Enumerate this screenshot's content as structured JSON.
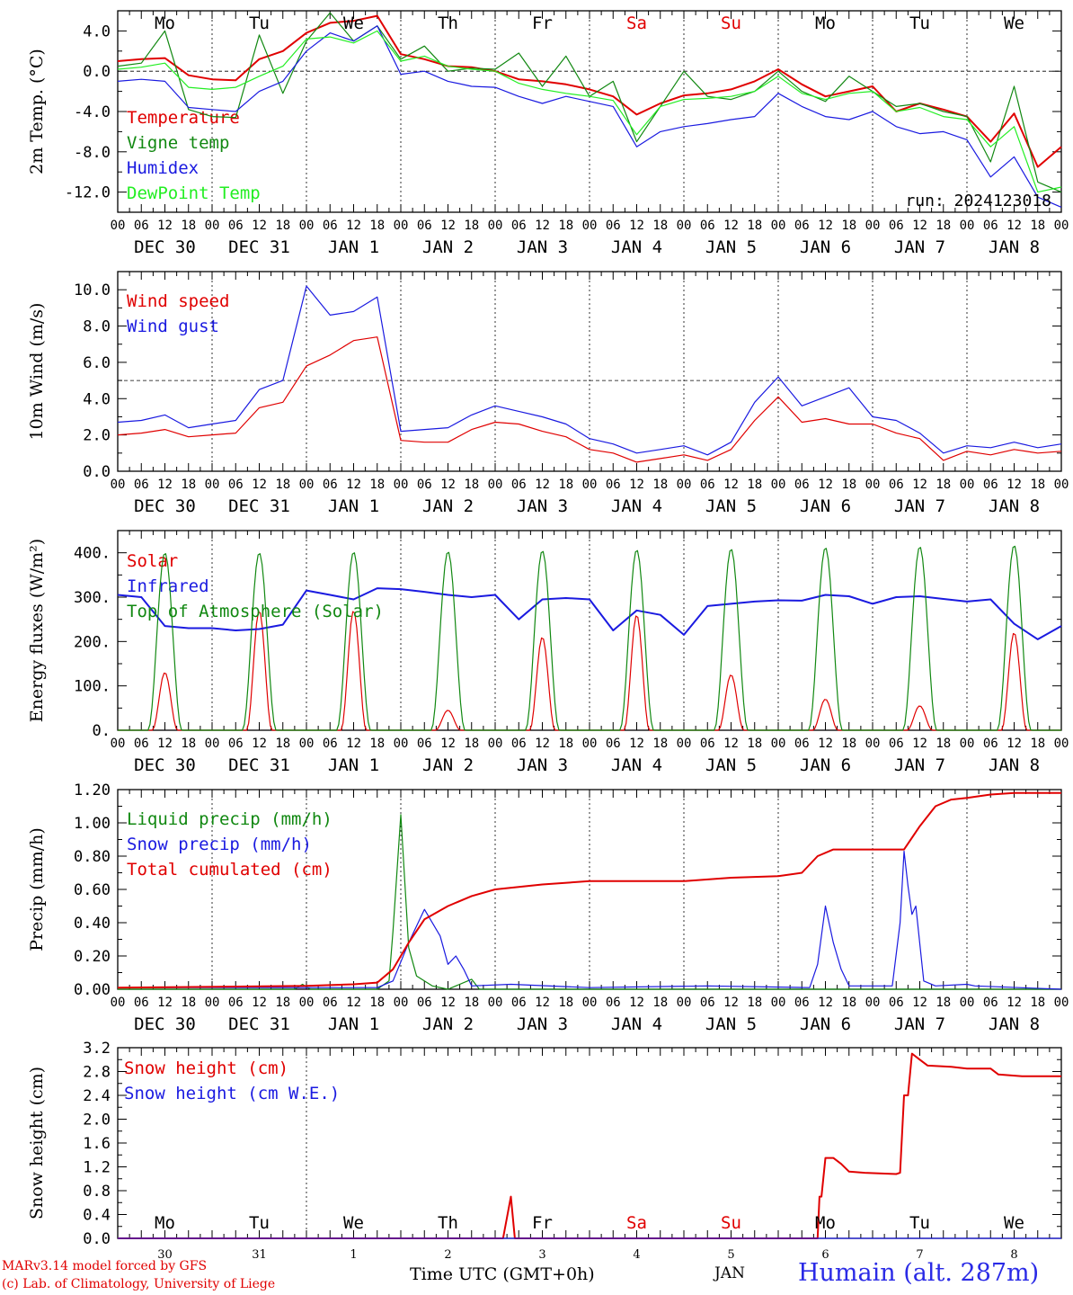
{
  "chart_data": [
    {
      "type": "line",
      "ylabel": "2m Temp. (°C)",
      "ylim": [
        -14,
        6
      ],
      "yticks": [
        4,
        0,
        -4,
        -8,
        -12
      ],
      "ytick_labels": [
        "4.0",
        "0.0",
        "-4.0",
        "-8.0",
        "-12.0"
      ],
      "ref_line": 0,
      "annotation": "run: 2024123018",
      "x_hours": [
        0,
        6,
        12,
        18,
        24,
        30,
        36,
        42,
        48,
        54,
        60,
        66,
        72,
        78,
        84,
        90,
        96,
        102,
        108,
        114,
        120,
        126,
        132,
        138,
        144,
        150,
        156,
        162,
        168,
        174,
        180,
        186,
        192,
        198,
        204,
        210,
        216,
        222,
        228,
        234,
        240
      ],
      "series": [
        {
          "name": "Temperature",
          "color": "#e00000",
          "values": [
            1.0,
            1.2,
            1.3,
            -0.4,
            -0.8,
            -0.9,
            1.2,
            2.0,
            3.8,
            4.8,
            5.0,
            5.5,
            1.7,
            1.2,
            0.5,
            0.4,
            0.0,
            -0.8,
            -1.0,
            -1.3,
            -1.8,
            -2.5,
            -4.3,
            -3.2,
            -2.4,
            -2.2,
            -1.8,
            -1.0,
            0.2,
            -1.3,
            -2.5,
            -2.0,
            -1.5,
            -4.0,
            -3.2,
            -3.8,
            -4.5,
            -7.0,
            -4.2,
            -9.5,
            -7.5
          ]
        },
        {
          "name": "Vigne temp",
          "color": "#118811",
          "values": [
            0.5,
            0.8,
            4.0,
            -3.8,
            -4.5,
            -4.6,
            3.6,
            -2.2,
            3.0,
            5.8,
            3.0,
            4.5,
            1.2,
            2.5,
            0.0,
            0.3,
            0.2,
            1.8,
            -1.5,
            1.5,
            -2.5,
            -1.0,
            -7.0,
            -3.5,
            0.0,
            -2.5,
            -2.8,
            -2.0,
            0.0,
            -2.0,
            -3.0,
            -0.5,
            -2.0,
            -3.5,
            -3.2,
            -4.0,
            -4.5,
            -9.0,
            -1.5,
            -11.0,
            -12.0
          ]
        },
        {
          "name": "Humidex",
          "color": "#1a1ae0",
          "values": [
            -1.0,
            -0.8,
            -1.0,
            -3.6,
            -3.8,
            -4.0,
            -2.0,
            -1.0,
            2.0,
            3.8,
            3.0,
            4.5,
            -0.3,
            0.0,
            -1.0,
            -1.5,
            -1.6,
            -2.5,
            -3.2,
            -2.5,
            -3.0,
            -3.5,
            -7.5,
            -6.0,
            -5.5,
            -5.2,
            -4.8,
            -4.5,
            -2.2,
            -3.5,
            -4.5,
            -4.8,
            -4.0,
            -5.5,
            -6.2,
            -6.0,
            -6.8,
            -10.5,
            -8.5,
            -12.5,
            -13.5
          ]
        },
        {
          "name": "DewPoint Temp",
          "color": "#22ee22",
          "values": [
            0.2,
            0.4,
            0.8,
            -1.6,
            -1.8,
            -1.6,
            -0.5,
            0.5,
            3.2,
            3.4,
            2.8,
            4.0,
            1.0,
            1.5,
            0.5,
            0.2,
            0.0,
            -1.2,
            -1.8,
            -2.2,
            -2.5,
            -2.9,
            -6.3,
            -3.5,
            -2.8,
            -2.7,
            -2.5,
            -2.0,
            -0.5,
            -2.2,
            -2.8,
            -2.2,
            -2.0,
            -4.0,
            -3.6,
            -4.5,
            -4.8,
            -7.5,
            -5.5,
            -12.0,
            -11.5
          ]
        }
      ]
    },
    {
      "type": "line",
      "ylabel": "10m Wind (m/s)",
      "ylim": [
        0,
        11
      ],
      "yticks": [
        0,
        2,
        4,
        6,
        8,
        10
      ],
      "ytick_labels": [
        "0.0",
        "2.0",
        "4.0",
        "6.0",
        "8.0",
        "10.0"
      ],
      "ref_line": 5,
      "x_hours": [
        0,
        6,
        12,
        18,
        24,
        30,
        36,
        42,
        48,
        54,
        60,
        66,
        72,
        78,
        84,
        90,
        96,
        102,
        108,
        114,
        120,
        126,
        132,
        138,
        144,
        150,
        156,
        162,
        168,
        174,
        180,
        186,
        192,
        198,
        204,
        210,
        216,
        222,
        228,
        234,
        240
      ],
      "series": [
        {
          "name": "Wind speed",
          "color": "#e00000",
          "values": [
            2.0,
            2.1,
            2.3,
            1.9,
            2.0,
            2.1,
            3.5,
            3.8,
            5.8,
            6.4,
            7.2,
            7.4,
            1.7,
            1.6,
            1.6,
            2.3,
            2.7,
            2.6,
            2.2,
            1.9,
            1.2,
            1.0,
            0.5,
            0.7,
            0.9,
            0.6,
            1.2,
            2.8,
            4.1,
            2.7,
            2.9,
            2.6,
            2.6,
            2.1,
            1.8,
            0.6,
            1.1,
            0.9,
            1.2,
            1.0,
            1.1
          ]
        },
        {
          "name": "Wind gust",
          "color": "#1a1ae0",
          "values": [
            2.7,
            2.8,
            3.1,
            2.4,
            2.6,
            2.8,
            4.5,
            5.0,
            10.2,
            8.6,
            8.8,
            9.6,
            2.2,
            2.3,
            2.4,
            3.1,
            3.6,
            3.3,
            3.0,
            2.6,
            1.8,
            1.5,
            1.0,
            1.2,
            1.4,
            0.9,
            1.6,
            3.8,
            5.2,
            3.6,
            4.1,
            4.6,
            3.0,
            2.8,
            2.1,
            1.0,
            1.4,
            1.3,
            1.6,
            1.3,
            1.5
          ]
        }
      ]
    },
    {
      "type": "line",
      "ylabel": "Energy fluxes (W/m²)",
      "ylim": [
        0,
        450
      ],
      "yticks": [
        0,
        100,
        200,
        300,
        400
      ],
      "ytick_labels": [
        "0.",
        "100.",
        "200.",
        "300.",
        "400."
      ],
      "series": [
        {
          "name": "Solar",
          "color": "#e00000",
          "daily_peaks_wm2": [
            130,
            270,
            270,
            45,
            210,
            260,
            125,
            70,
            55,
            220
          ]
        },
        {
          "name": "Infrared",
          "color": "#1a1ae0",
          "x_hours": [
            0,
            6,
            12,
            18,
            24,
            30,
            36,
            42,
            48,
            54,
            60,
            66,
            72,
            78,
            84,
            90,
            96,
            102,
            108,
            114,
            120,
            126,
            132,
            138,
            144,
            150,
            156,
            162,
            168,
            174,
            180,
            186,
            192,
            198,
            204,
            210,
            216,
            222,
            228,
            234,
            240
          ],
          "values": [
            305,
            300,
            235,
            230,
            230,
            225,
            228,
            238,
            315,
            305,
            295,
            320,
            318,
            312,
            305,
            300,
            305,
            250,
            295,
            298,
            295,
            225,
            270,
            260,
            215,
            280,
            285,
            290,
            293,
            292,
            305,
            302,
            285,
            300,
            302,
            296,
            290,
            295,
            240,
            205,
            235
          ]
        },
        {
          "name": "Top of Atmosphere (Solar)",
          "color": "#118811",
          "daily_peaks_wm2": [
            400,
            400,
            402,
            403,
            405,
            407,
            409,
            412,
            414,
            417
          ]
        }
      ]
    },
    {
      "type": "line",
      "ylabel": "Precip (mm/h)",
      "ylim": [
        0,
        1.2
      ],
      "yticks": [
        0,
        0.2,
        0.4,
        0.6,
        0.8,
        1.0,
        1.2
      ],
      "ytick_labels": [
        "0.00",
        "0.20",
        "0.40",
        "0.60",
        "0.80",
        "1.00",
        "1.20"
      ],
      "series": [
        {
          "name": "Liquid precip (mm/h)",
          "color": "#118811",
          "points": [
            [
              0,
              0
            ],
            [
              45,
              0
            ],
            [
              47,
              0.03
            ],
            [
              49,
              0
            ],
            [
              66,
              0
            ],
            [
              69,
              0.05
            ],
            [
              70,
              0.35
            ],
            [
              72,
              1.05
            ],
            [
              74,
              0.25
            ],
            [
              76,
              0.08
            ],
            [
              80,
              0.02
            ],
            [
              84,
              0
            ],
            [
              90,
              0.06
            ],
            [
              92,
              0
            ],
            [
              240,
              0
            ]
          ]
        },
        {
          "name": "Snow precip (mm/h)",
          "color": "#1a1ae0",
          "points": [
            [
              0,
              0.01
            ],
            [
              66,
              0.01
            ],
            [
              70,
              0.05
            ],
            [
              74,
              0.28
            ],
            [
              78,
              0.48
            ],
            [
              82,
              0.32
            ],
            [
              84,
              0.15
            ],
            [
              86,
              0.2
            ],
            [
              88,
              0.12
            ],
            [
              90,
              0.02
            ],
            [
              100,
              0.03
            ],
            [
              120,
              0.01
            ],
            [
              150,
              0.02
            ],
            [
              176,
              0.01
            ],
            [
              178,
              0.15
            ],
            [
              180,
              0.5
            ],
            [
              182,
              0.28
            ],
            [
              184,
              0.12
            ],
            [
              186,
              0.02
            ],
            [
              197,
              0.02
            ],
            [
              199,
              0.4
            ],
            [
              200,
              0.83
            ],
            [
              201,
              0.62
            ],
            [
              202,
              0.45
            ],
            [
              203,
              0.5
            ],
            [
              205,
              0.05
            ],
            [
              208,
              0.02
            ],
            [
              216,
              0.03
            ],
            [
              218,
              0.02
            ],
            [
              240,
              0
            ]
          ]
        },
        {
          "name": "Total cumulated (cm)",
          "color": "#e00000",
          "points": [
            [
              0,
              0.01
            ],
            [
              48,
              0.02
            ],
            [
              60,
              0.03
            ],
            [
              66,
              0.04
            ],
            [
              70,
              0.12
            ],
            [
              74,
              0.28
            ],
            [
              78,
              0.42
            ],
            [
              84,
              0.5
            ],
            [
              90,
              0.56
            ],
            [
              96,
              0.6
            ],
            [
              108,
              0.63
            ],
            [
              120,
              0.65
            ],
            [
              144,
              0.65
            ],
            [
              156,
              0.67
            ],
            [
              168,
              0.68
            ],
            [
              174,
              0.7
            ],
            [
              178,
              0.8
            ],
            [
              182,
              0.84
            ],
            [
              200,
              0.84
            ],
            [
              204,
              0.98
            ],
            [
              208,
              1.1
            ],
            [
              212,
              1.14
            ],
            [
              216,
              1.15
            ],
            [
              222,
              1.17
            ],
            [
              228,
              1.18
            ],
            [
              240,
              1.18
            ]
          ]
        }
      ]
    },
    {
      "type": "line",
      "ylabel": "Snow height (cm)",
      "ylim": [
        0,
        3.2
      ],
      "yticks": [
        0,
        0.4,
        0.8,
        1.2,
        1.6,
        2.0,
        2.4,
        2.8,
        3.2
      ],
      "ytick_labels": [
        "0.0",
        "0.4",
        "0.8",
        "1.2",
        "1.6",
        "2.0",
        "2.4",
        "2.8",
        "3.2"
      ],
      "series": [
        {
          "name": "Snow height (cm)",
          "color": "#e00000",
          "points": [
            [
              0,
              0
            ],
            [
              98,
              0
            ],
            [
              100,
              0.7
            ],
            [
              101,
              0
            ],
            [
              178,
              0
            ],
            [
              178.5,
              0.7
            ],
            [
              179,
              0.7
            ],
            [
              180,
              1.35
            ],
            [
              182,
              1.35
            ],
            [
              184,
              1.25
            ],
            [
              186,
              1.12
            ],
            [
              190,
              1.1
            ],
            [
              198,
              1.08
            ],
            [
              199,
              1.1
            ],
            [
              200,
              2.4
            ],
            [
              201,
              2.4
            ],
            [
              202,
              3.1
            ],
            [
              204,
              3.0
            ],
            [
              206,
              2.9
            ],
            [
              212,
              2.88
            ],
            [
              216,
              2.85
            ],
            [
              222,
              2.85
            ],
            [
              224,
              2.75
            ],
            [
              230,
              2.72
            ],
            [
              240,
              2.72
            ]
          ]
        },
        {
          "name": "Snow height (cm W.E.)",
          "color": "#1a1ae0",
          "points": [
            [
              0,
              0
            ],
            [
              240,
              0
            ]
          ]
        }
      ]
    }
  ],
  "x_axis": {
    "hour_ticks": [
      "00",
      "06",
      "12",
      "18"
    ],
    "hour_end_label": "00",
    "day_labels": [
      "DEC 30",
      "DEC 31",
      "JAN  1",
      "JAN  2",
      "JAN  3",
      "JAN  4",
      "JAN  5",
      "JAN  6",
      "JAN  7",
      "JAN  8"
    ],
    "weekday_labels": [
      {
        "text": "Mo",
        "color": "#000000"
      },
      {
        "text": "Tu",
        "color": "#000000"
      },
      {
        "text": "We",
        "color": "#000000"
      },
      {
        "text": "Th",
        "color": "#000000"
      },
      {
        "text": "Fr",
        "color": "#000000"
      },
      {
        "text": "Sa",
        "color": "#e00000"
      },
      {
        "text": "Su",
        "color": "#e00000"
      },
      {
        "text": "Mo",
        "color": "#000000"
      },
      {
        "text": "Tu",
        "color": "#000000"
      },
      {
        "text": "We",
        "color": "#000000"
      }
    ],
    "day_numbers": [
      "30",
      "31",
      "1",
      "2",
      "3",
      "4",
      "5",
      "6",
      "7",
      "8"
    ]
  },
  "footer": {
    "credit_line1": "MARv3.14 model forced by GFS",
    "credit_line2": "(c) Lab. of Climatology, University of Liege",
    "xlabel": "Time UTC (GMT+0h)",
    "month": "JAN",
    "station": "Humain (alt. 287m)"
  }
}
